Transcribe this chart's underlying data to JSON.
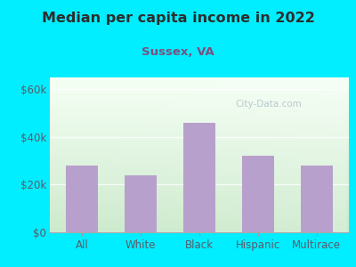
{
  "title": "Median per capita income in 2022",
  "subtitle": "Sussex, VA",
  "categories": [
    "All",
    "White",
    "Black",
    "Hispanic",
    "Multirace"
  ],
  "values": [
    28000,
    24000,
    46000,
    32000,
    28000
  ],
  "bar_color": "#b8a0cc",
  "bg_outer_color": "#00eeff",
  "title_color": "#2d2d2d",
  "subtitle_color": "#7b5080",
  "tick_label_color": "#5a5a6a",
  "ylabel_values": [
    0,
    20000,
    40000,
    60000
  ],
  "ylabels": [
    "$0",
    "$20k",
    "$40k",
    "$60k"
  ],
  "ylim": [
    0,
    65000
  ],
  "watermark": "City-Data.com"
}
